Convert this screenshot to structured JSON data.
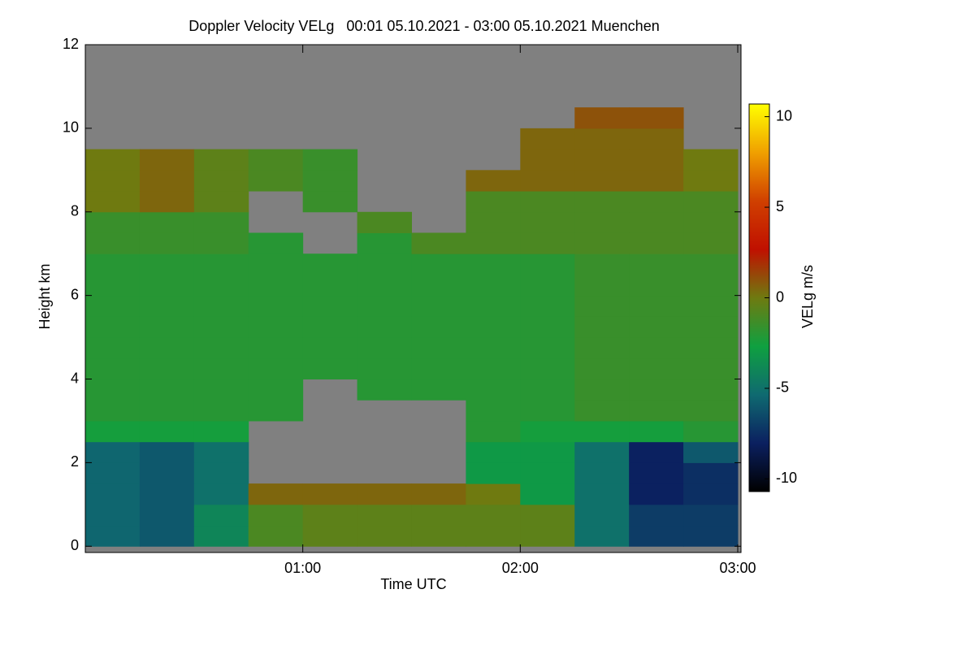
{
  "chart_data": {
    "type": "heatmap",
    "title": "Doppler Velocity VELg   00:01 05.10.2021 - 03:00 05.10.2021 Muenchen",
    "x_label": "Time UTC",
    "y_label": "Height km",
    "colorbar_label": "VELg m/s",
    "xlim": [
      0,
      3.015
    ],
    "ylim": [
      -0.15,
      12
    ],
    "xticks": [
      {
        "value": 1,
        "label": "01:00"
      },
      {
        "value": 2,
        "label": "02:00"
      },
      {
        "value": 3,
        "label": "03:00"
      }
    ],
    "yticks": [
      0,
      2,
      4,
      6,
      8,
      10,
      12
    ],
    "zlim": [
      -10.7,
      10.7
    ],
    "zticks": [
      -10,
      -5,
      0,
      5,
      10
    ],
    "colors": [
      "#000000",
      "#0b2060",
      "#0f6a70",
      "#0fa040",
      "#6f7a10",
      "#c01000",
      "#d04000",
      "#f0a000",
      "#ffff00"
    ],
    "background": "#808080",
    "x_bins": [
      0,
      0.25,
      0.5,
      0.75,
      1,
      1.25,
      1.5,
      1.75,
      2,
      2.25,
      2.5,
      2.75,
      3
    ],
    "y_bins": [
      0,
      0.5,
      1,
      1.5,
      2,
      2.5,
      3,
      3.5,
      4,
      4.5,
      5,
      5.5,
      6,
      6.5,
      7,
      7.5,
      8,
      8.5,
      9,
      9.5,
      10,
      10.5,
      11,
      11.5,
      12
    ],
    "z": [
      [
        -5.5,
        -6,
        -4,
        -1,
        -0.5,
        -0.5,
        -0.5,
        -0.5,
        -0.5,
        -5,
        -7,
        -7
      ],
      [
        -5.5,
        -6,
        -4,
        -1,
        -0.5,
        -0.5,
        -0.5,
        -0.5,
        -0.5,
        -5,
        -7,
        -7
      ],
      [
        -5.5,
        -6,
        -5,
        0.5,
        0.5,
        0.5,
        0.5,
        0,
        -3,
        -5,
        -8,
        -7.5
      ],
      [
        -5.5,
        -6,
        -5,
        null,
        null,
        null,
        null,
        -3,
        -3,
        -5,
        -8,
        -7.5
      ],
      [
        -5.5,
        -6,
        -5,
        null,
        null,
        null,
        null,
        -3,
        -3,
        -5,
        -8,
        -6
      ],
      [
        -2.5,
        -2.5,
        -2.5,
        null,
        null,
        null,
        null,
        -2,
        -2.5,
        -2.5,
        -2.5,
        -2
      ],
      [
        -2,
        -2,
        -2,
        -2,
        null,
        null,
        null,
        -2,
        -2,
        -1.5,
        -1.5,
        -1.5
      ],
      [
        -2,
        -2,
        -2,
        -2,
        null,
        -2,
        -2,
        -2,
        -2,
        -1.5,
        -1.5,
        -1.5
      ],
      [
        -2,
        -2,
        -2,
        -2,
        -2,
        -2,
        -2,
        -2,
        -2,
        -1.5,
        -1.5,
        -1.5
      ],
      [
        -2,
        -2,
        -2,
        -2,
        -2,
        -2,
        -2,
        -2,
        -2,
        -1.5,
        -1.5,
        -1.5
      ],
      [
        -2,
        -2,
        -2,
        -2,
        -2,
        -2,
        -2,
        -2,
        -2,
        -1.5,
        -1.5,
        -1.5
      ],
      [
        -2,
        -2,
        -2,
        -2,
        -2,
        -2,
        -2,
        -2,
        -2,
        -1.5,
        -1.5,
        -1.5
      ],
      [
        -2,
        -2,
        -2,
        -2,
        -2,
        -2,
        -2,
        -2,
        -2,
        -1.5,
        -1.5,
        -1.5
      ],
      [
        -2,
        -2,
        -2,
        -2,
        -2,
        -2,
        -2,
        -2,
        -2,
        -1.5,
        -1.5,
        -1.5
      ],
      [
        -1.5,
        -1.5,
        -1.5,
        -2,
        null,
        -2,
        -1,
        -1,
        -1,
        -1,
        -1,
        -1
      ],
      [
        -1.5,
        -1.5,
        -1.5,
        null,
        null,
        -1,
        null,
        -1,
        -1,
        -1,
        -1,
        -1
      ],
      [
        0,
        0.5,
        -0.5,
        null,
        -1.5,
        null,
        null,
        -1,
        -1,
        -1,
        -1,
        -1
      ],
      [
        0,
        0.5,
        -0.5,
        -1,
        -1.5,
        null,
        null,
        0.5,
        0.5,
        0.5,
        0.5,
        0
      ],
      [
        0,
        0.5,
        -0.5,
        -1,
        -1.5,
        null,
        null,
        null,
        0.5,
        0.5,
        0.5,
        0
      ],
      [
        null,
        null,
        null,
        null,
        null,
        null,
        null,
        null,
        0.5,
        0.5,
        0.5,
        null
      ],
      [
        null,
        null,
        null,
        null,
        null,
        null,
        null,
        null,
        null,
        1,
        1,
        null
      ],
      [
        null,
        null,
        null,
        null,
        null,
        null,
        null,
        null,
        null,
        null,
        null,
        null
      ],
      [
        null,
        null,
        null,
        null,
        null,
        null,
        null,
        null,
        null,
        null,
        null,
        null
      ],
      [
        null,
        null,
        null,
        null,
        null,
        null,
        null,
        null,
        null,
        null,
        null,
        null
      ]
    ]
  }
}
